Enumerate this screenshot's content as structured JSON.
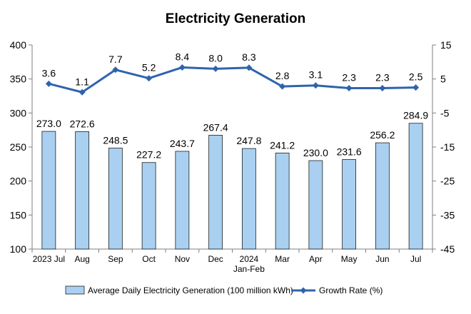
{
  "chart_data": {
    "type": "bar",
    "title": "Electricity Generation",
    "categories": [
      "2023 Jul",
      "Aug",
      "Sep",
      "Oct",
      "Nov",
      "Dec",
      "2024\nJan-Feb",
      "Mar",
      "Apr",
      "May",
      "Jun",
      "Jul"
    ],
    "series": [
      {
        "name": "Average Daily Electricity Generation (100 million kWh)",
        "type": "bar",
        "axis": "left",
        "values": [
          273.0,
          272.6,
          248.5,
          227.2,
          243.7,
          267.4,
          247.8,
          241.2,
          230.0,
          231.6,
          256.2,
          284.9
        ],
        "labels": [
          "273.0",
          "272.6",
          "248.5",
          "227.2",
          "243.7",
          "267.4",
          "247.8",
          "241.2",
          "230.0",
          "231.6",
          "256.2",
          "284.9"
        ],
        "color": "#a9d0f1"
      },
      {
        "name": "Growth Rate (%)",
        "type": "line",
        "axis": "right",
        "values": [
          3.6,
          1.1,
          7.7,
          5.2,
          8.4,
          8.0,
          8.3,
          2.8,
          3.1,
          2.3,
          2.3,
          2.5
        ],
        "labels": [
          "3.6",
          "1.1",
          "7.7",
          "5.2",
          "8.4",
          "8.0",
          "8.3",
          "2.8",
          "3.1",
          "2.3",
          "2.3",
          "2.5"
        ],
        "color": "#2e64ad"
      }
    ],
    "ylim_left": [
      100,
      400
    ],
    "yticks_left": [
      100,
      150,
      200,
      250,
      300,
      350,
      400
    ],
    "ylim_right": [
      -45,
      15
    ],
    "yticks_right": [
      -45,
      -35,
      -25,
      -15,
      -5,
      5,
      15
    ],
    "grid": false,
    "legend": "bottom"
  }
}
